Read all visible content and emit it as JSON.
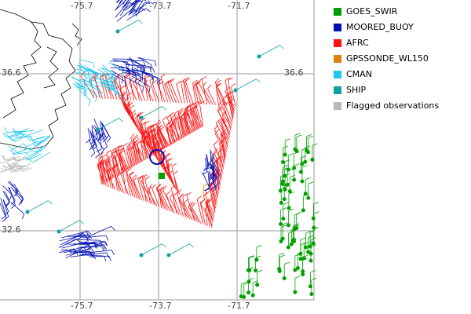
{
  "map": {
    "lon_labels": [
      "-75.7",
      "-73.7",
      "-71.7"
    ],
    "lat_labels": [
      "36.6",
      "32.6"
    ]
  },
  "legend": {
    "items": [
      {
        "label": "GOES_SWIR",
        "color": "#00a000"
      },
      {
        "label": "MOORED_BUOY",
        "color": "#0010b0"
      },
      {
        "label": "AFRC",
        "color": "#ff1010"
      },
      {
        "label": "GPSSONDE_WL150",
        "color": "#e08010"
      },
      {
        "label": "CMAN",
        "color": "#20c8f0"
      },
      {
        "label": "SHIP",
        "color": "#10a0a0"
      },
      {
        "label": "Flagged observations",
        "color": "#b8b8b8"
      }
    ]
  }
}
